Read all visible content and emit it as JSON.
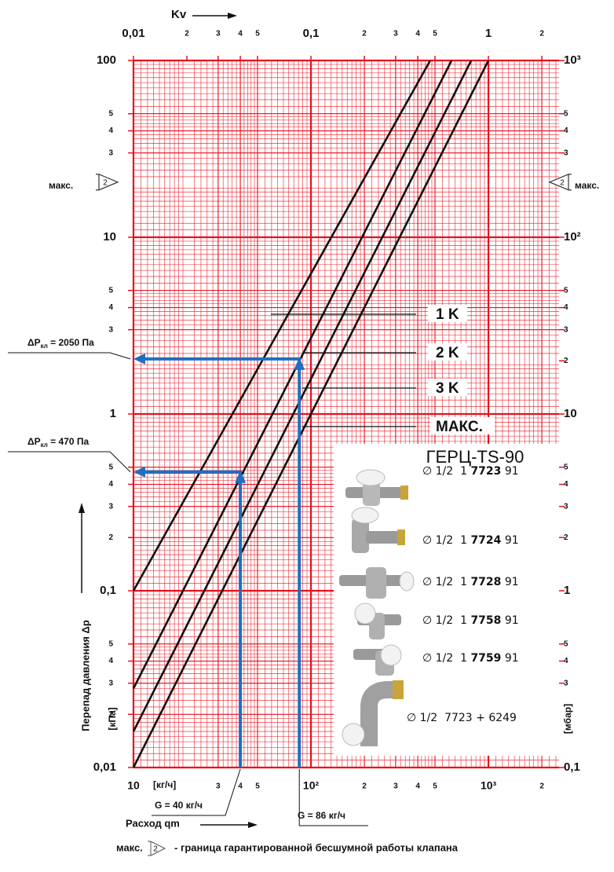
{
  "chart_data": {
    "type": "line",
    "log_x": true,
    "log_y": true,
    "grid": true,
    "grid_color": "#e8101e",
    "x2_label": "Kv",
    "x_label": "Расход qm",
    "x_unit": "[кг/ч]",
    "y_label": "Перепад давления Δp",
    "y_unit": "[кПа]",
    "y2_unit": "[мбар]",
    "xlim": [
      10,
      2500
    ],
    "xticks": [
      10,
      {
        "value": 30,
        "label": "3"
      },
      {
        "value": 40,
        "label": "4"
      },
      {
        "value": 50,
        "label": "5"
      },
      {
        "value": 100,
        "label": "10²"
      },
      {
        "value": 200,
        "label": "2"
      },
      {
        "value": 300,
        "label": "3"
      },
      {
        "value": 400,
        "label": "4"
      },
      {
        "value": 500,
        "label": "5"
      },
      {
        "value": 1000,
        "label": "10³"
      },
      {
        "value": 2000,
        "label": "2"
      }
    ],
    "x2lim": [
      0.01,
      2.5
    ],
    "x2ticks": [
      {
        "value": 0.01,
        "label": "0,01"
      },
      {
        "value": 0.02,
        "label": "2"
      },
      {
        "value": 0.03,
        "label": "3"
      },
      {
        "value": 0.04,
        "label": "4"
      },
      {
        "value": 0.05,
        "label": "5"
      },
      {
        "value": 0.1,
        "label": "0,1"
      },
      {
        "value": 0.2,
        "label": "2"
      },
      {
        "value": 0.3,
        "label": "3"
      },
      {
        "value": 0.4,
        "label": "4"
      },
      {
        "value": 0.5,
        "label": "5"
      },
      1,
      2
    ],
    "ylim": [
      0.01,
      100
    ],
    "yticks": [
      100,
      {
        "value": 50,
        "label": "5"
      },
      {
        "value": 40,
        "label": "4"
      },
      {
        "value": 30,
        "label": "3"
      },
      10,
      5,
      4,
      3,
      1,
      {
        "value": 0.5,
        "label": "5"
      },
      {
        "value": 0.4,
        "label": "4"
      },
      {
        "value": 0.3,
        "label": "3"
      },
      {
        "value": 0.2,
        "label": "2"
      },
      {
        "value": 0.1,
        "label": "0,1"
      },
      {
        "value": 0.05,
        "label": "5"
      },
      {
        "value": 0.04,
        "label": "4"
      },
      {
        "value": 0.03,
        "label": "3"
      },
      {
        "value": 0.02,
        "label": "2"
      },
      {
        "value": 0.01,
        "label": "0,01"
      }
    ],
    "y2lim": [
      0.1,
      1000
    ],
    "y2ticks": [
      {
        "value": 1000,
        "label": "10³"
      },
      {
        "value": 500,
        "label": "5"
      },
      {
        "value": 400,
        "label": "4"
      },
      {
        "value": 300,
        "label": "3"
      },
      {
        "value": 100,
        "label": "10²"
      },
      {
        "value": 50,
        "label": "5"
      },
      {
        "value": 40,
        "label": "4"
      },
      {
        "value": 30,
        "label": "3"
      },
      {
        "value": 20,
        "label": "2"
      },
      10,
      5,
      4,
      3,
      2,
      1,
      {
        "value": 0.5,
        "label": "5"
      },
      {
        "value": 0.4,
        "label": "4"
      },
      {
        "value": 0.3,
        "label": "3"
      },
      {
        "value": 0.1,
        "label": "0,1"
      }
    ],
    "series": [
      {
        "name": "1 K",
        "color": "#111111",
        "x": [
          10,
          470
        ],
        "values": [
          0.1,
          100
        ]
      },
      {
        "name": "2 K",
        "color": "#111111",
        "x": [
          10,
          620
        ],
        "values": [
          0.028,
          100
        ]
      },
      {
        "name": "3 K",
        "color": "#111111",
        "x": [
          10,
          800
        ],
        "values": [
          0.016,
          100
        ]
      },
      {
        "name": "МАКС.",
        "color": "#111111",
        "x": [
          10,
          1000
        ],
        "values": [
          0.01,
          100
        ]
      }
    ],
    "annotations": [
      {
        "x": 86,
        "y": 2.05,
        "color": "#1f6fc1",
        "dp_symbol": "ΔP",
        "dp_sub": "кл",
        "dp_text": " = 2050 Па",
        "g_text": "G = 86 кг/ч"
      },
      {
        "x": 40,
        "y": 0.47,
        "color": "#1f6fc1",
        "dp_symbol": "ΔP",
        "dp_sub": "кл",
        "dp_text": " = 470 Па",
        "g_text": "G = 40 кг/ч"
      }
    ],
    "max_marker": {
      "label": "макс.",
      "symbol": "2",
      "y": 20.5
    },
    "legend": {
      "title": "ГЕРЦ-TS-90",
      "items": [
        {
          "prefix": "∅ 1/2  1 ",
          "code": "7723",
          "suffix": " 91"
        },
        {
          "prefix": "∅ 1/2  1 ",
          "code": "7724",
          "suffix": " 91"
        },
        {
          "prefix": "∅ 1/2  1 ",
          "code": "7728",
          "suffix": " 91"
        },
        {
          "prefix": "∅ 1/2  1 ",
          "code": "7758",
          "suffix": " 91"
        },
        {
          "prefix": "∅ 1/2  1 ",
          "code": "7759",
          "suffix": " 91"
        },
        {
          "prefix": "∅ 1/2  7723 + 6249"
        }
      ]
    },
    "footnote": {
      "label": "макс.",
      "symbol": "2",
      "text": "- граница гарантированной бесшумной работы клапана"
    }
  }
}
